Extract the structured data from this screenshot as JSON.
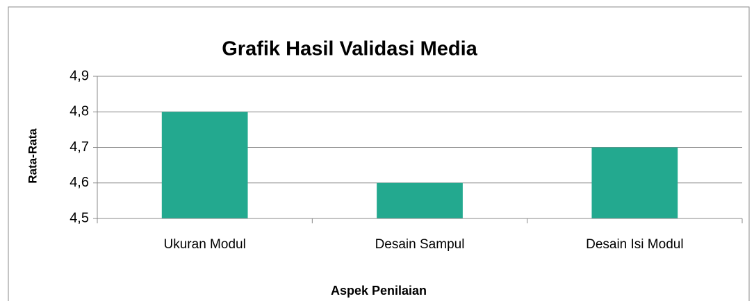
{
  "chart_data": {
    "type": "bar",
    "title": "Grafik Hasil Validasi Media",
    "x_label": "Aspek Penilaian",
    "y_label": "Rata-Rata",
    "categories": [
      "Ukuran Modul",
      "Desain Sampul",
      "Desain Isi Modul"
    ],
    "values": [
      4.8,
      4.6,
      4.7
    ],
    "color": "#23a98f",
    "ylim": [
      4.5,
      4.9
    ],
    "yticks": [
      {
        "value": 4.5,
        "label": "4,5"
      },
      {
        "value": 4.6,
        "label": "4,6"
      },
      {
        "value": 4.7,
        "label": "4,7"
      },
      {
        "value": 4.8,
        "label": "4,8"
      },
      {
        "value": 4.9,
        "label": "4,9"
      }
    ],
    "grid": true
  }
}
